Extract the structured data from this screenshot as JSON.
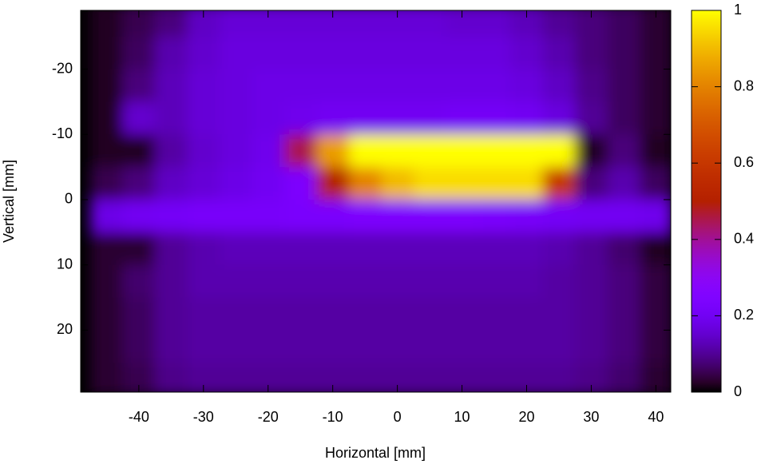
{
  "chart_data": {
    "type": "heatmap",
    "x_label": "Horizontal [mm]",
    "y_label": "Vertical [mm]",
    "x": [
      -45,
      -40,
      -35,
      -30,
      -25,
      -20,
      -15,
      -10,
      -5,
      0,
      5,
      10,
      15,
      20,
      25,
      30,
      35,
      40
    ],
    "y": [
      -27.5,
      -22.5,
      -17.5,
      -12.5,
      -7.5,
      -2.5,
      2.5,
      7.5,
      12.5,
      17.5,
      22.5,
      27.5
    ],
    "z": [
      [
        0.02,
        0.05,
        0.08,
        0.14,
        0.16,
        0.16,
        0.16,
        0.16,
        0.16,
        0.16,
        0.16,
        0.15,
        0.15,
        0.13,
        0.1,
        0.08,
        0.06,
        0.03
      ],
      [
        0.02,
        0.06,
        0.12,
        0.15,
        0.17,
        0.17,
        0.17,
        0.17,
        0.17,
        0.17,
        0.17,
        0.17,
        0.17,
        0.15,
        0.12,
        0.08,
        0.06,
        0.03
      ],
      [
        0.02,
        0.08,
        0.13,
        0.16,
        0.17,
        0.18,
        0.18,
        0.18,
        0.18,
        0.18,
        0.18,
        0.18,
        0.18,
        0.17,
        0.14,
        0.09,
        0.06,
        0.03
      ],
      [
        0.02,
        0.15,
        0.13,
        0.16,
        0.17,
        0.18,
        0.19,
        0.2,
        0.2,
        0.2,
        0.2,
        0.21,
        0.21,
        0.2,
        0.17,
        0.1,
        0.06,
        0.03
      ],
      [
        0.02,
        0.02,
        0.11,
        0.15,
        0.17,
        0.19,
        0.45,
        0.85,
        1,
        1,
        1,
        1,
        1,
        1,
        1,
        0.02,
        0.08,
        0.02
      ],
      [
        0.05,
        0.08,
        0.14,
        0.16,
        0.18,
        0.2,
        0.24,
        0.5,
        0.8,
        0.9,
        0.95,
        0.95,
        0.95,
        0.95,
        0.6,
        0.08,
        0.12,
        0.06
      ],
      [
        0.18,
        0.2,
        0.21,
        0.22,
        0.22,
        0.22,
        0.23,
        0.23,
        0.24,
        0.24,
        0.24,
        0.24,
        0.23,
        0.22,
        0.21,
        0.2,
        0.2,
        0.19
      ],
      [
        0.03,
        0.03,
        0.1,
        0.12,
        0.13,
        0.13,
        0.13,
        0.13,
        0.13,
        0.13,
        0.13,
        0.13,
        0.13,
        0.13,
        0.12,
        0.1,
        0.07,
        0.02
      ],
      [
        0.03,
        0.07,
        0.1,
        0.12,
        0.12,
        0.12,
        0.12,
        0.12,
        0.12,
        0.12,
        0.12,
        0.12,
        0.12,
        0.12,
        0.11,
        0.1,
        0.08,
        0.04
      ],
      [
        0.03,
        0.06,
        0.1,
        0.11,
        0.11,
        0.11,
        0.11,
        0.11,
        0.11,
        0.11,
        0.11,
        0.11,
        0.11,
        0.11,
        0.11,
        0.1,
        0.08,
        0.04
      ],
      [
        0.03,
        0.06,
        0.1,
        0.11,
        0.11,
        0.11,
        0.11,
        0.11,
        0.11,
        0.11,
        0.11,
        0.11,
        0.11,
        0.11,
        0.11,
        0.1,
        0.08,
        0.04
      ],
      [
        0.03,
        0.05,
        0.09,
        0.1,
        0.1,
        0.1,
        0.1,
        0.1,
        0.1,
        0.1,
        0.1,
        0.1,
        0.1,
        0.1,
        0.1,
        0.09,
        0.07,
        0.03
      ]
    ],
    "xlim": [
      -49,
      42.3
    ],
    "ylim": [
      -29,
      29.5
    ],
    "xticks": [
      -40,
      -30,
      -20,
      -10,
      0,
      10,
      20,
      30,
      40
    ],
    "yticks": [
      -20,
      -10,
      0,
      10,
      20
    ],
    "colorbar": {
      "lim": [
        0,
        1
      ],
      "ticks": [
        0,
        0.2,
        0.4,
        0.6,
        0.8,
        1
      ]
    }
  }
}
